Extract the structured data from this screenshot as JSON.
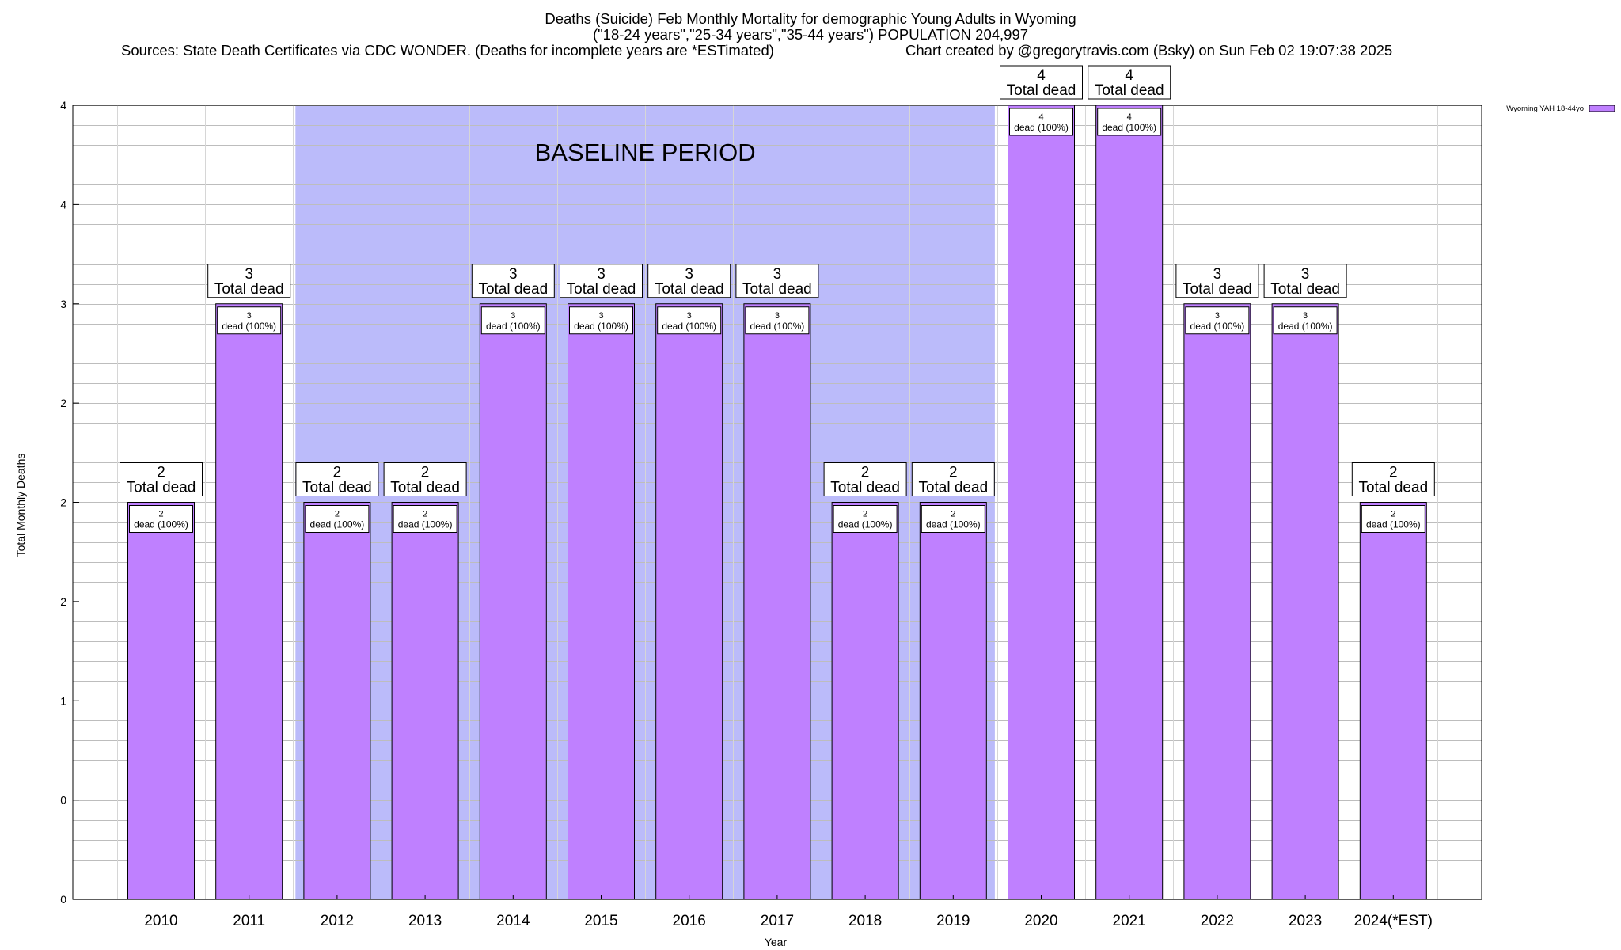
{
  "header": {
    "title_line1": "Deaths (Suicide) Feb Monthly Mortality for demographic Young Adults in Wyoming",
    "title_line2": "(\"18-24 years\",\"25-34 years\",\"35-44 years\") POPULATION 204,997",
    "sources": "Sources: State Death Certificates via CDC WONDER. (Deaths for incomplete years are *ESTimated)",
    "credit": "Chart created by @gregorytravis.com (Bsky) on Sun Feb 02 19:07:38 2025"
  },
  "chart_data": {
    "type": "bar",
    "title": "Deaths (Suicide) Feb Monthly Mortality for demographic Young Adults in Wyoming",
    "xlabel": "Year",
    "ylabel": "Total Monthly Deaths",
    "categories": [
      "2010",
      "2011",
      "2012",
      "2013",
      "2014",
      "2015",
      "2016",
      "2017",
      "2018",
      "2019",
      "2020",
      "2021",
      "2022",
      "2023",
      "2024(*EST)"
    ],
    "series": [
      {
        "name": "Wyoming YAH 18-44yo",
        "values": [
          2,
          3,
          2,
          2,
          3,
          3,
          3,
          3,
          2,
          2,
          4,
          4,
          3,
          3,
          2
        ],
        "color": "#bf80ff"
      }
    ],
    "ylim": [
      0,
      4
    ],
    "y_tick_values": [
      0,
      0.5,
      1,
      1.5,
      2,
      2.5,
      3,
      3.5,
      4
    ],
    "y_tick_labels": [
      "0",
      "0",
      "1",
      "2",
      "2",
      "2",
      "3",
      "4",
      "4"
    ],
    "minor_grid_step": 0.1,
    "grid": true,
    "legend_position": "top-right",
    "baseline_period": {
      "label": "BASELINE PERIOD",
      "from": "2012",
      "to": "2019",
      "color": "#bbbbfa"
    },
    "total_label_suffix": "Total dead",
    "bar_label_suffix": "dead (100%)"
  }
}
